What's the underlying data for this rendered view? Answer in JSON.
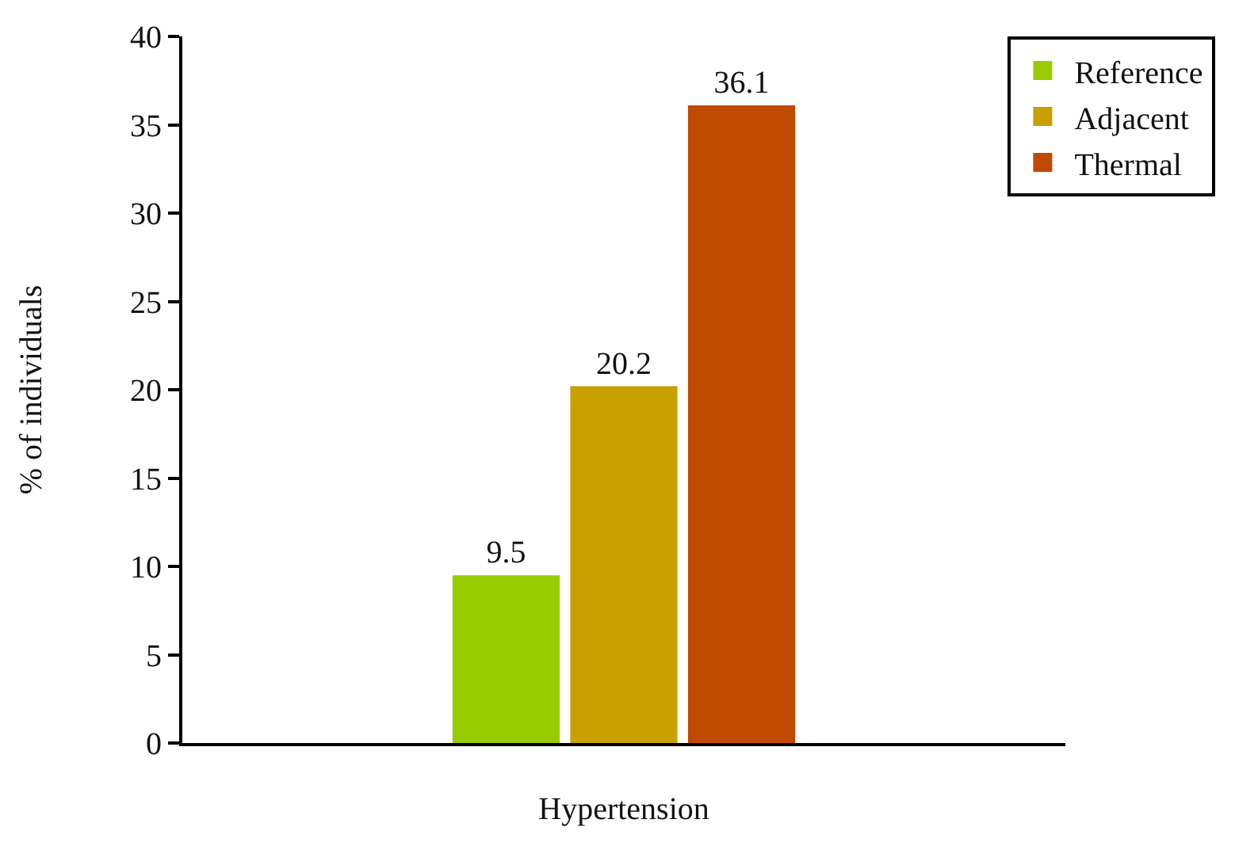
{
  "chart_data": {
    "type": "bar",
    "ylabel": "% of individuals",
    "categories": [
      "Hypertension"
    ],
    "series": [
      {
        "name": "Reference",
        "color": "#99cc00",
        "values": [
          9.5
        ]
      },
      {
        "name": "Adjacent",
        "color": "#c8a000",
        "values": [
          20.2
        ]
      },
      {
        "name": "Thermal",
        "color": "#c04a00",
        "values": [
          36.1
        ]
      }
    ],
    "ylim": [
      0,
      40
    ],
    "yticks": [
      0,
      5,
      10,
      15,
      20,
      25,
      30,
      35,
      40
    ],
    "grid": false,
    "legend": "top right",
    "data_labels": true
  }
}
